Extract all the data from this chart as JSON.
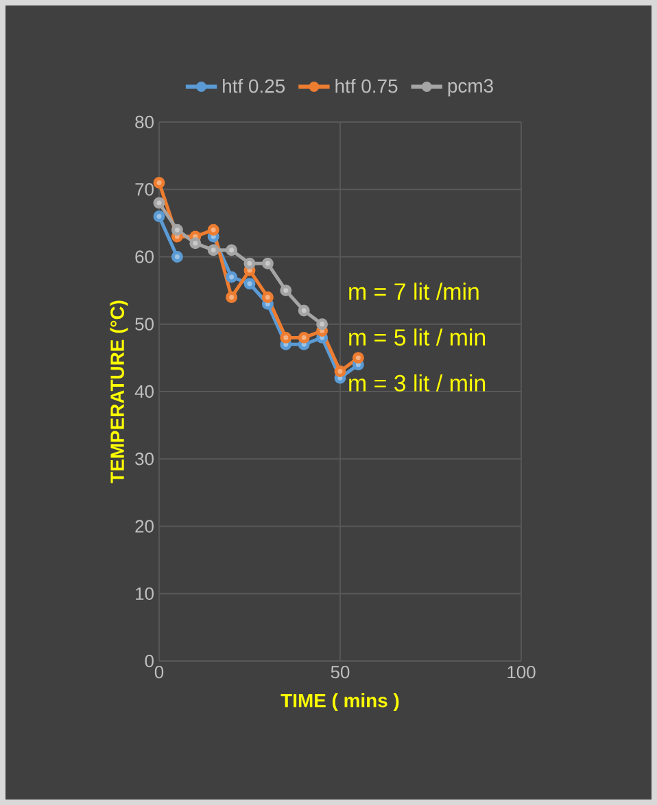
{
  "chart_data": {
    "type": "line",
    "xlabel": "TIME ( mins )",
    "ylabel": "TEMPERATURE (°C)",
    "x": [
      0,
      5,
      10,
      15,
      20,
      25,
      30,
      35,
      40,
      45,
      50,
      55
    ],
    "series": [
      {
        "name": "htf 0.25",
        "color": "#5b9bd5",
        "values": [
          66,
          60,
          null,
          63,
          57,
          56,
          53,
          47,
          47,
          48,
          42,
          44
        ]
      },
      {
        "name": "htf 0.75",
        "color": "#ed7d31",
        "values": [
          71,
          63,
          63,
          64,
          54,
          58,
          54,
          48,
          48,
          49,
          43,
          45
        ]
      },
      {
        "name": "pcm3",
        "color": "#a5a5a5",
        "values": [
          68,
          64,
          62,
          61,
          61,
          59,
          59,
          55,
          52,
          50,
          null,
          null
        ]
      }
    ],
    "xlim": [
      0,
      100
    ],
    "xticks": [
      0,
      50,
      100
    ],
    "ylim": [
      0,
      80
    ],
    "yticks": [
      0,
      10,
      20,
      30,
      40,
      50,
      60,
      70,
      80
    ],
    "grid": true,
    "legend": "top",
    "marker": "circle",
    "line_style": "solid",
    "annotations": [
      "m = 7 lit /min",
      "m = 5 lit / min",
      "m = 3 lit / min"
    ]
  }
}
